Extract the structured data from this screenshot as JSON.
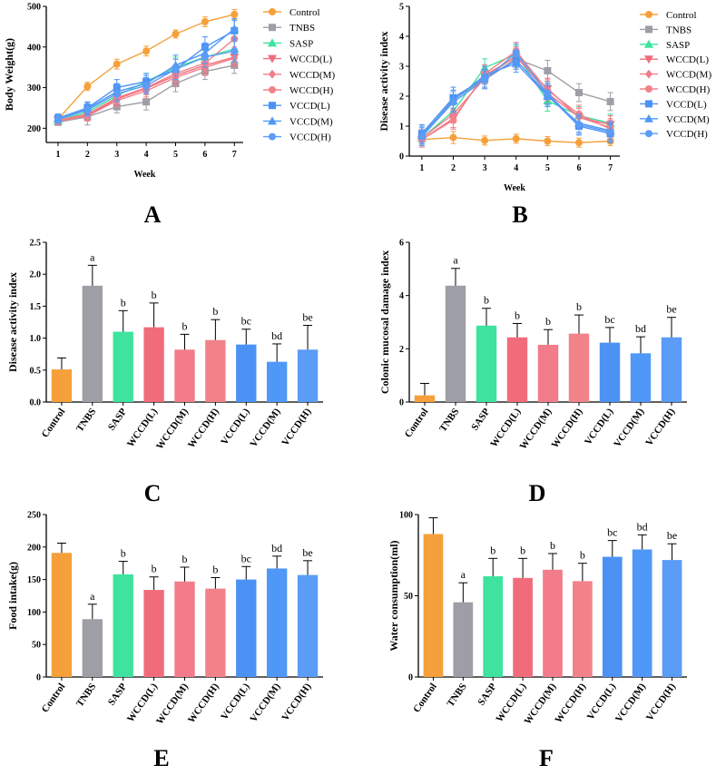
{
  "colors": {
    "Control": "#f5a03a",
    "TNBS": "#9e9ea6",
    "SASP": "#3de39e",
    "WCCD(L)": "#f16c7a",
    "WCCD(M)": "#f27c8a",
    "WCCD(H)": "#f2828a",
    "VCCD(L)": "#4c92f5",
    "VCCD(M)": "#4f98f8",
    "VCCD(H)": "#5a9cf6"
  },
  "markers": {
    "Control": "circle",
    "TNBS": "square",
    "SASP": "triangle-up",
    "WCCD(L)": "triangle-down",
    "WCCD(M)": "diamond",
    "WCCD(H)": "circle",
    "VCCD(L)": "square",
    "VCCD(M)": "triangle-up",
    "VCCD(H)": "circle"
  },
  "chart_data": [
    {
      "panel": "A",
      "type": "line",
      "xlabel": "Week",
      "ylabel": "Body Weight(g)",
      "x": [
        1,
        2,
        3,
        4,
        5,
        6,
        7
      ],
      "xlim": [
        0.6,
        7.3
      ],
      "ylim": [
        165,
        500
      ],
      "yticks": [
        200,
        300,
        400,
        500
      ],
      "legend_position": "right",
      "series": [
        {
          "name": "Control",
          "values": [
            222,
            303,
            358,
            390,
            432,
            462,
            480
          ],
          "err": [
            8,
            10,
            12,
            12,
            10,
            12,
            12
          ]
        },
        {
          "name": "TNBS",
          "values": [
            215,
            228,
            253,
            265,
            310,
            340,
            355
          ],
          "err": [
            8,
            20,
            15,
            20,
            20,
            20,
            20
          ]
        },
        {
          "name": "SASP",
          "values": [
            220,
            240,
            280,
            315,
            350,
            375,
            395
          ],
          "err": [
            8,
            12,
            15,
            20,
            25,
            25,
            20
          ]
        },
        {
          "name": "WCCD(L)",
          "values": [
            220,
            232,
            272,
            298,
            330,
            355,
            375
          ],
          "err": [
            8,
            12,
            15,
            15,
            20,
            20,
            20
          ]
        },
        {
          "name": "WCCD(M)",
          "values": [
            218,
            230,
            268,
            292,
            325,
            350,
            372
          ],
          "err": [
            8,
            12,
            15,
            15,
            20,
            20,
            20
          ]
        },
        {
          "name": "WCCD(H)",
          "values": [
            220,
            235,
            275,
            300,
            335,
            360,
            420
          ],
          "err": [
            8,
            12,
            15,
            15,
            20,
            20,
            20
          ]
        },
        {
          "name": "VCCD(L)",
          "values": [
            225,
            250,
            300,
            315,
            345,
            400,
            440
          ],
          "err": [
            10,
            15,
            20,
            20,
            25,
            25,
            25
          ]
        },
        {
          "name": "VCCD(M)",
          "values": [
            225,
            248,
            290,
            310,
            355,
            385,
            445
          ],
          "err": [
            10,
            15,
            20,
            20,
            25,
            25,
            25
          ]
        },
        {
          "name": "VCCD(H)",
          "values": [
            222,
            245,
            285,
            305,
            345,
            375,
            390
          ],
          "err": [
            10,
            15,
            20,
            20,
            25,
            25,
            25
          ]
        }
      ]
    },
    {
      "panel": "B",
      "type": "line",
      "xlabel": "Week",
      "ylabel": "Disease activity index",
      "x": [
        1,
        2,
        3,
        4,
        5,
        6,
        7
      ],
      "xlim": [
        0.6,
        7.3
      ],
      "ylim": [
        0,
        5
      ],
      "yticks": [
        0,
        1,
        2,
        3,
        4,
        5
      ],
      "legend_position": "right",
      "series": [
        {
          "name": "Control",
          "values": [
            0.55,
            0.62,
            0.52,
            0.58,
            0.5,
            0.45,
            0.5
          ],
          "err": [
            0.15,
            0.2,
            0.15,
            0.15,
            0.15,
            0.15,
            0.15
          ]
        },
        {
          "name": "TNBS",
          "values": [
            0.65,
            1.9,
            2.55,
            3.25,
            2.85,
            2.12,
            1.82
          ],
          "err": [
            0.25,
            0.3,
            0.3,
            0.3,
            0.35,
            0.3,
            0.3
          ]
        },
        {
          "name": "SASP",
          "values": [
            0.6,
            1.5,
            2.95,
            3.4,
            1.85,
            1.35,
            1.1
          ],
          "err": [
            0.25,
            0.3,
            0.3,
            0.3,
            0.35,
            0.3,
            0.3
          ]
        },
        {
          "name": "WCCD(L)",
          "values": [
            0.55,
            1.25,
            2.7,
            3.3,
            2.25,
            1.3,
            1.05
          ],
          "err": [
            0.25,
            0.3,
            0.3,
            0.3,
            0.35,
            0.3,
            0.3
          ]
        },
        {
          "name": "WCCD(M)",
          "values": [
            0.6,
            1.4,
            2.6,
            3.35,
            2.1,
            1.3,
            0.95
          ],
          "err": [
            0.25,
            0.3,
            0.3,
            0.3,
            0.35,
            0.3,
            0.3
          ]
        },
        {
          "name": "WCCD(H)",
          "values": [
            0.55,
            1.2,
            2.75,
            3.5,
            2.2,
            1.4,
            0.9
          ],
          "err": [
            0.25,
            0.3,
            0.3,
            0.3,
            0.35,
            0.3,
            0.3
          ]
        },
        {
          "name": "VCCD(L)",
          "values": [
            0.75,
            1.95,
            2.6,
            3.2,
            2.05,
            1.0,
            0.75
          ],
          "err": [
            0.3,
            0.35,
            0.3,
            0.3,
            0.35,
            0.3,
            0.3
          ]
        },
        {
          "name": "VCCD(M)",
          "values": [
            0.7,
            1.85,
            2.7,
            3.1,
            2.0,
            1.1,
            0.85
          ],
          "err": [
            0.3,
            0.35,
            0.3,
            0.3,
            0.35,
            0.3,
            0.3
          ]
        },
        {
          "name": "VCCD(H)",
          "values": [
            0.65,
            1.8,
            2.55,
            3.45,
            2.1,
            1.05,
            0.8
          ],
          "err": [
            0.3,
            0.35,
            0.3,
            0.3,
            0.35,
            0.3,
            0.3
          ]
        }
      ]
    },
    {
      "panel": "C",
      "type": "bar",
      "ylabel": "Disease activity index",
      "categories": [
        "Control",
        "TNBS",
        "SASP",
        "WCCD(L)",
        "WCCD(M)",
        "WCCD(H)",
        "VCCD(L)",
        "VCCD(M)",
        "VCCD(H)"
      ],
      "values": [
        0.51,
        1.82,
        1.1,
        1.17,
        0.82,
        0.97,
        0.9,
        0.63,
        0.82
      ],
      "errors": [
        0.18,
        0.32,
        0.33,
        0.38,
        0.24,
        0.32,
        0.24,
        0.28,
        0.38
      ],
      "labels": [
        "",
        "a",
        "b",
        "b",
        "b",
        "b",
        "bc",
        "bd",
        "be"
      ],
      "ylim": [
        0,
        2.5
      ],
      "yticks": [
        "0.0",
        "0.5",
        "1.0",
        "1.5",
        "2.0",
        "2.5"
      ]
    },
    {
      "panel": "D",
      "type": "bar",
      "ylabel": "Colonic mucosal damage index",
      "categories": [
        "Control",
        "TNBS",
        "SASP",
        "WCCD(L)",
        "WCCD(M)",
        "WCCD(H)",
        "VCCD(L)",
        "VCCD(M)",
        "VCCD(H)"
      ],
      "values": [
        0.25,
        4.37,
        2.87,
        2.43,
        2.15,
        2.57,
        2.23,
        1.83,
        2.43
      ],
      "errors": [
        0.45,
        0.65,
        0.65,
        0.52,
        0.57,
        0.7,
        0.57,
        0.62,
        0.75
      ],
      "labels": [
        "",
        "a",
        "b",
        "b",
        "b",
        "b",
        "bc",
        "bd",
        "be"
      ],
      "ylim": [
        0,
        6
      ],
      "yticks": [
        "0",
        "2",
        "4",
        "6"
      ]
    },
    {
      "panel": "E",
      "type": "bar",
      "ylabel": "Food intake(g)",
      "categories": [
        "Control",
        "TNBS",
        "SASP",
        "WCCD(L)",
        "WCCD(M)",
        "WCCD(H)",
        "VCCD(L)",
        "VCCD(M)",
        "VCCD(H)"
      ],
      "values": [
        191,
        89,
        158,
        134,
        147,
        136,
        150,
        167,
        157
      ],
      "errors": [
        15,
        23,
        20,
        20,
        22,
        17,
        20,
        19,
        22
      ],
      "labels": [
        "",
        "a",
        "b",
        "b",
        "b",
        "b",
        "bc",
        "bd",
        "be"
      ],
      "ylim": [
        0,
        250
      ],
      "yticks": [
        "0",
        "50",
        "100",
        "150",
        "200",
        "250"
      ]
    },
    {
      "panel": "F",
      "type": "bar",
      "ylabel": "Water consumption(ml)",
      "categories": [
        "Control",
        "TNBS",
        "SASP",
        "WCCD(L)",
        "WCCD(M)",
        "WCCD(H)",
        "VCCD(L)",
        "VCCD(M)",
        "VCCD(H)"
      ],
      "values": [
        88,
        46,
        62,
        61,
        66,
        59,
        74,
        78.5,
        72
      ],
      "errors": [
        10,
        12,
        11,
        12,
        10,
        11,
        10,
        9,
        10
      ],
      "labels": [
        "",
        "a",
        "b",
        "b",
        "b",
        "b",
        "bc",
        "bd",
        "be"
      ],
      "ylim": [
        0,
        100
      ],
      "yticks": [
        "0",
        "50",
        "100"
      ]
    }
  ]
}
